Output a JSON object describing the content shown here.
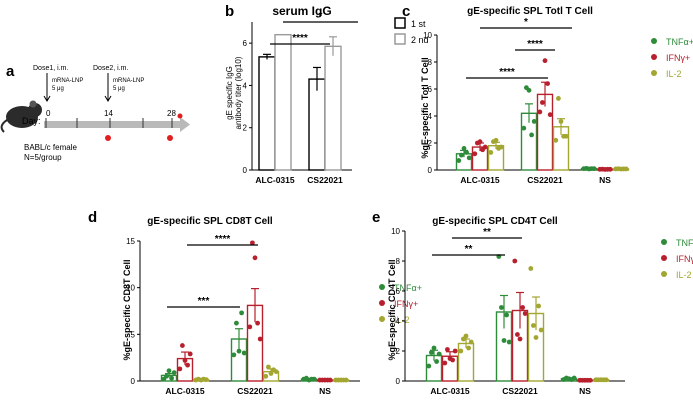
{
  "colors": {
    "tnf": "#2e8b3a",
    "ifn": "#b8202e",
    "il2": "#a3a631",
    "black": "#000000",
    "grey": "#9a9a9a"
  },
  "panel_a": {
    "letter": "a",
    "day_label": "Day:",
    "dose1": "Dose1, i.m.",
    "dose2": "Dose2, i.m.",
    "mrna": "mRNA-LNP",
    "dose_amt": "5 μg",
    "days": [
      "0",
      "14",
      "28"
    ],
    "mouse_line1": "BABL/c  female",
    "mouse_line2": "N=5/group"
  },
  "chart_data": [
    {
      "id": "b",
      "letter": "b",
      "type": "bar",
      "title": "serum IgG",
      "ylabel": "gE specific IgG antibody titer (log10)",
      "ylabel_lines": [
        "gE specific IgG",
        "antibody titer (log10)"
      ],
      "categories": [
        "ALC-0315",
        "CS22021"
      ],
      "series": [
        {
          "name": "1 st",
          "values": [
            5.35,
            4.3
          ],
          "sem": [
            0.12,
            0.55
          ]
        },
        {
          "name": "2 nd",
          "values": [
            6.4,
            5.85
          ],
          "sem": [
            0.0,
            0.45
          ]
        }
      ],
      "ylim": [
        0,
        7
      ],
      "yticks": [
        "0",
        "2",
        "4",
        "6"
      ],
      "significance": [
        "****",
        "*"
      ]
    },
    {
      "id": "c",
      "letter": "c",
      "type": "bar",
      "title": "gE-specific SPL Totl T Cell",
      "ylabel": "%gE-specific Totl T Cell",
      "categories": [
        "ALC-0315",
        "CS22021",
        "NS"
      ],
      "series": [
        {
          "name": "TNFα+",
          "values": [
            1.2,
            4.2,
            0.1
          ],
          "sem": [
            0.25,
            0.7,
            0.03
          ]
        },
        {
          "name": "IFNγ+",
          "values": [
            1.7,
            5.6,
            0.05
          ],
          "sem": [
            0.3,
            0.9,
            0.03
          ]
        },
        {
          "name": "IL-2",
          "values": [
            1.8,
            3.2,
            0.08
          ],
          "sem": [
            0.25,
            0.6,
            0.03
          ]
        }
      ],
      "points": [
        [
          [
            0.7,
            1.1,
            1.6,
            1.3,
            0.9
          ],
          [
            3.1,
            6.1,
            5.9,
            2.6,
            3.6
          ],
          [
            0.1,
            0.12,
            0.08,
            0.1,
            0.1
          ]
        ],
        [
          [
            1.2,
            2.0,
            2.1,
            1.5,
            1.7
          ],
          [
            4.3,
            5.0,
            8.1,
            6.4,
            4.1
          ],
          [
            0.05,
            0.06,
            0.04,
            0.05,
            0.05
          ]
        ],
        [
          [
            1.3,
            2.1,
            2.2,
            1.6,
            1.7
          ],
          [
            2.2,
            5.3,
            3.6,
            2.5,
            2.5
          ],
          [
            0.08,
            0.09,
            0.07,
            0.08,
            0.08
          ]
        ]
      ],
      "ylim": [
        0,
        10
      ],
      "yticks": [
        "0",
        "2",
        "4",
        "6",
        "8",
        "10"
      ],
      "significance": [
        "*",
        "****",
        "****"
      ]
    },
    {
      "id": "d",
      "letter": "d",
      "type": "bar",
      "title": "gE-specific SPL CD8T Cell",
      "ylabel": "%gE-specific CD8T Cell",
      "categories": [
        "ALC-0315",
        "CS22021",
        "NS"
      ],
      "series": [
        {
          "name": "TNFα+",
          "values": [
            0.6,
            4.5,
            0.2
          ],
          "sem": [
            0.2,
            1.1,
            0.05
          ]
        },
        {
          "name": "IFNγ+",
          "values": [
            2.4,
            8.1,
            0.1
          ],
          "sem": [
            0.7,
            1.8,
            0.05
          ]
        },
        {
          "name": "IL-2",
          "values": [
            0.15,
            1.0,
            0.1
          ],
          "sem": [
            0.05,
            0.3,
            0.05
          ]
        }
      ],
      "points": [
        [
          [
            0.2,
            0.5,
            1.1,
            0.3,
            0.9
          ],
          [
            2.8,
            6.2,
            3.2,
            7.3,
            3.0
          ],
          [
            0.2,
            0.3,
            0.1,
            0.2,
            0.2
          ]
        ],
        [
          [
            1.3,
            3.8,
            2.2,
            1.7,
            2.9
          ],
          [
            5.8,
            14.8,
            13.2,
            6.2,
            4.5
          ],
          [
            0.1,
            0.1,
            0.1,
            0.1,
            0.1
          ]
        ],
        [
          [
            0.1,
            0.2,
            0.1,
            0.2,
            0.15
          ],
          [
            0.5,
            1.5,
            0.8,
            1.2,
            1.0
          ],
          [
            0.1,
            0.1,
            0.1,
            0.1,
            0.1
          ]
        ]
      ],
      "ylim": [
        0,
        15
      ],
      "yticks": [
        "0",
        "5",
        "10",
        "15"
      ],
      "significance": [
        "***",
        "****"
      ]
    },
    {
      "id": "e",
      "letter": "e",
      "type": "bar",
      "title": "gE-specific SPL CD4T Cell",
      "ylabel": "%gE-specific CD4T Cell",
      "categories": [
        "ALC-0315",
        "CS22021",
        "NS"
      ],
      "series": [
        {
          "name": "TNFα+",
          "values": [
            1.7,
            4.6,
            0.15
          ],
          "sem": [
            0.35,
            1.1,
            0.05
          ]
        },
        {
          "name": "IFNγ+",
          "values": [
            1.65,
            4.7,
            0.05
          ],
          "sem": [
            0.3,
            1.2,
            0.03
          ]
        },
        {
          "name": "IL-2",
          "values": [
            2.5,
            4.5,
            0.08
          ],
          "sem": [
            0.3,
            1.1,
            0.03
          ]
        }
      ],
      "points": [
        [
          [
            1.0,
            1.9,
            2.2,
            1.3,
            1.8
          ],
          [
            8.3,
            4.9,
            2.7,
            4.4,
            2.6
          ],
          [
            0.1,
            0.2,
            0.15,
            0.1,
            0.2
          ]
        ],
        [
          [
            1.2,
            2.1,
            1.5,
            1.4,
            2.0
          ],
          [
            8.0,
            3.1,
            2.8,
            4.9,
            4.5
          ],
          [
            0.05,
            0.05,
            0.05,
            0.05,
            0.05
          ]
        ],
        [
          [
            2.0,
            2.8,
            3.0,
            2.2,
            2.6
          ],
          [
            7.5,
            3.7,
            2.9,
            5.0,
            3.4
          ],
          [
            0.08,
            0.08,
            0.08,
            0.08,
            0.08
          ]
        ]
      ],
      "ylim": [
        0,
        10
      ],
      "yticks": [
        "0",
        "2",
        "4",
        "6",
        "8",
        "10"
      ],
      "significance": [
        "**",
        "**"
      ]
    }
  ]
}
